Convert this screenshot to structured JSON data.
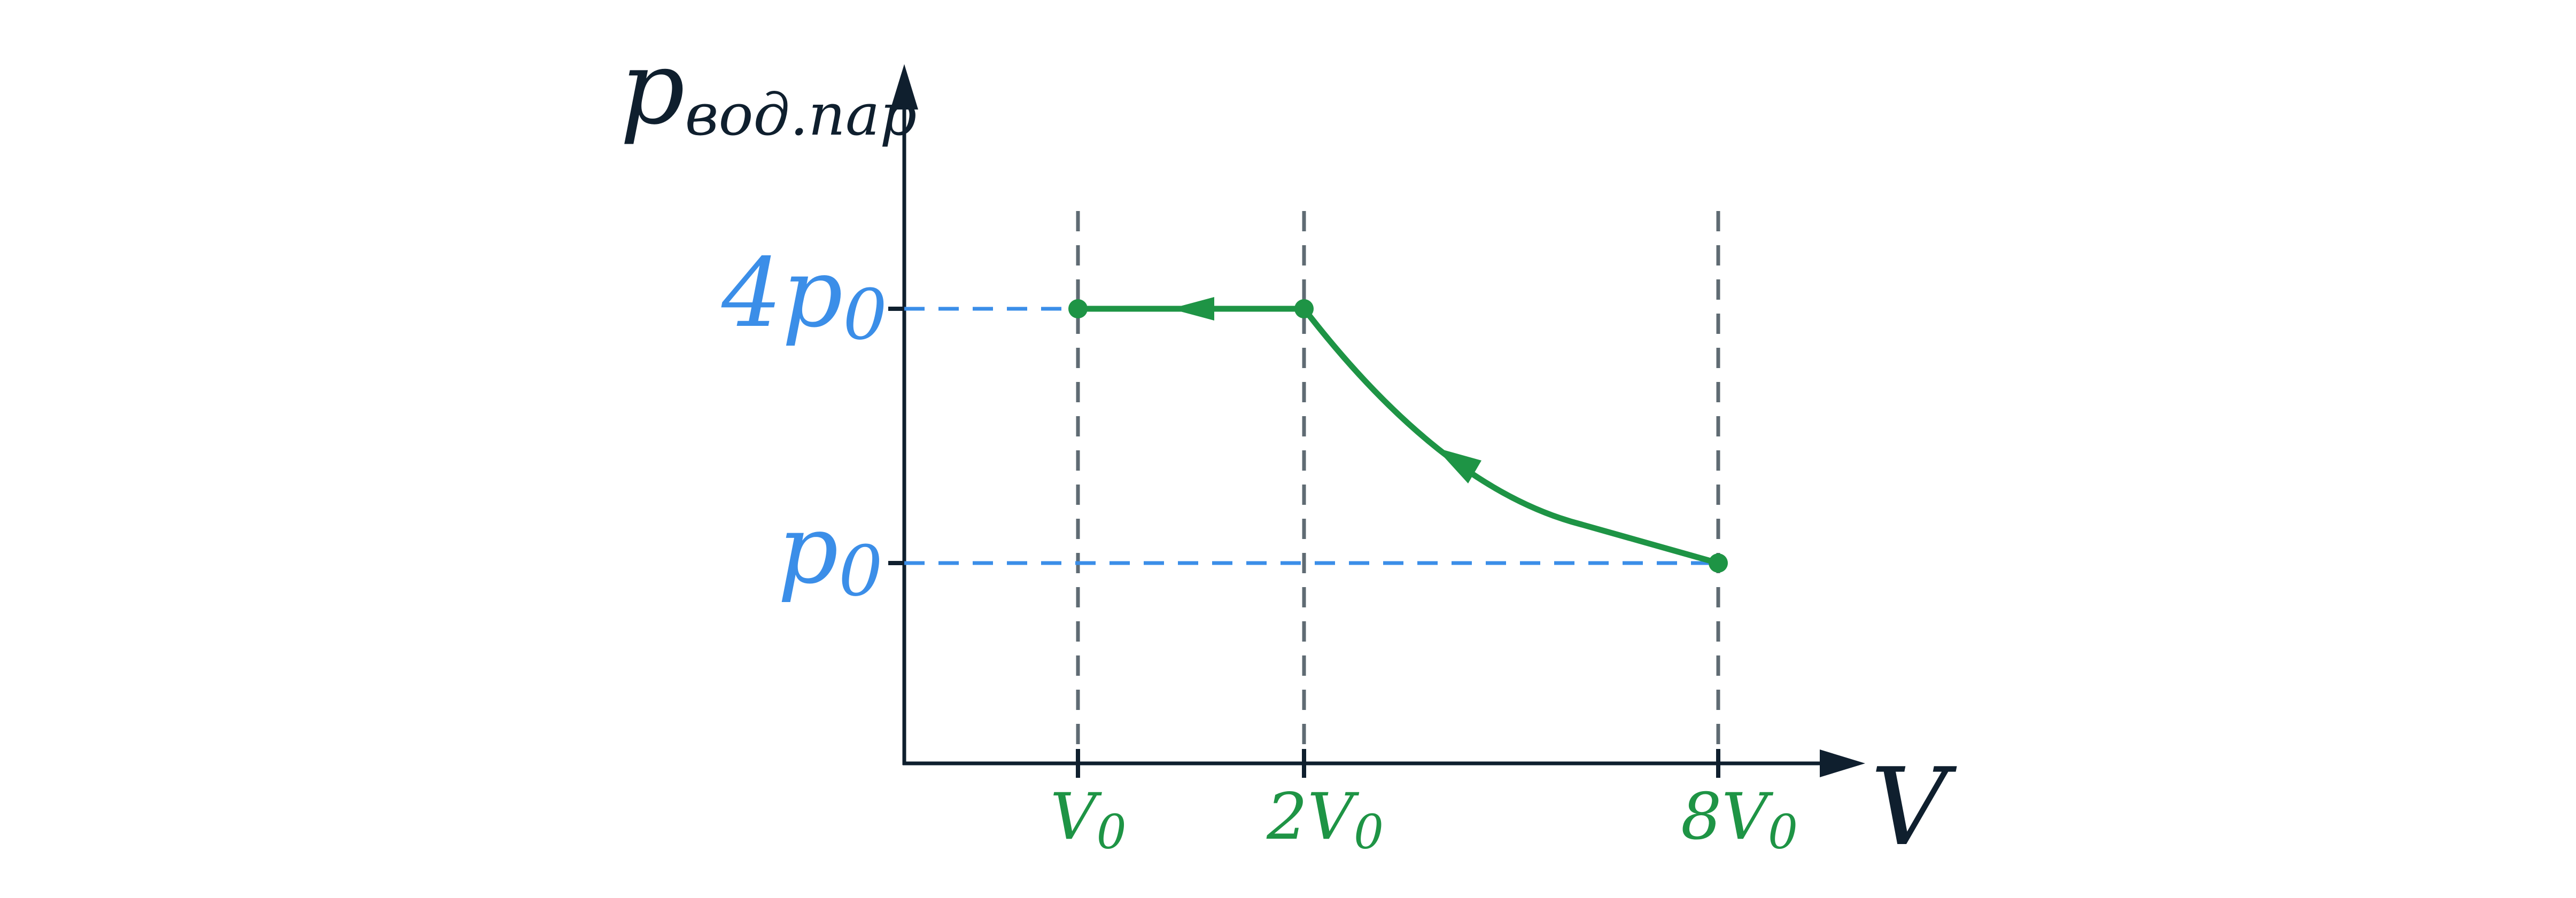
{
  "axes": {
    "y_label": {
      "main": "p",
      "sub": "вод.пар"
    },
    "x_label": "V"
  },
  "pressure_levels": [
    {
      "main": "4p",
      "sub": "0"
    },
    {
      "main": "p",
      "sub": "0"
    }
  ],
  "volume_levels": [
    {
      "main": "V",
      "sub": "0"
    },
    {
      "main": "2V",
      "sub": "0"
    },
    {
      "main": "8V",
      "sub": "0"
    }
  ],
  "colors": {
    "axis": "#0f1f2e",
    "guide": "#5f6b73",
    "pressure": "#3b8ee8",
    "process": "#1e9445"
  },
  "process": {
    "points": [
      {
        "label": "8V0, p0",
        "V": 8,
        "p": 1
      },
      {
        "label": "2V0, 4p0",
        "V": 2,
        "p": 4
      },
      {
        "label": "V0, 4p0",
        "V": 1,
        "p": 4
      }
    ],
    "segments": [
      {
        "from": "8V0, p0",
        "to": "2V0, 4p0",
        "shape": "curve",
        "direction": "toward smaller V"
      },
      {
        "from": "2V0, 4p0",
        "to": "V0, 4p0",
        "shape": "horizontal",
        "direction": "toward smaller V"
      }
    ]
  }
}
